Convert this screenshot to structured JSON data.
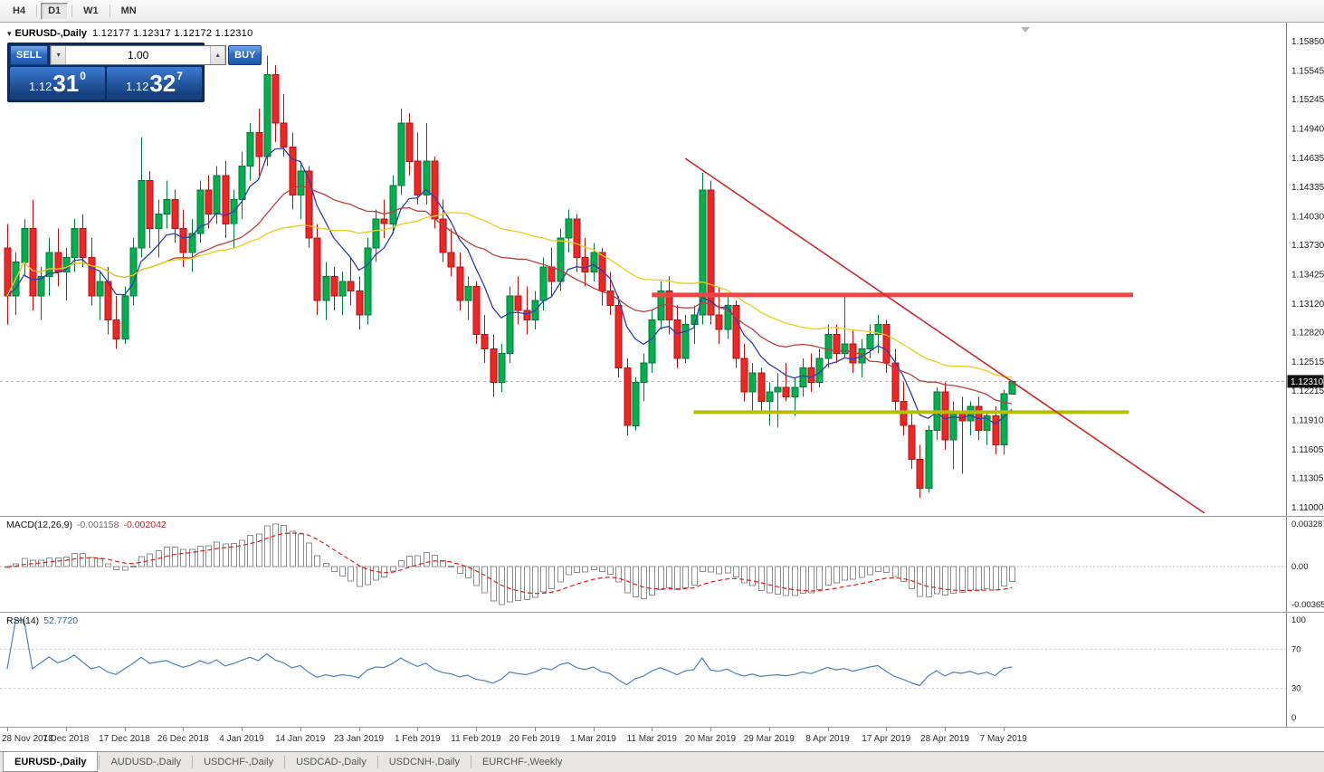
{
  "toolbar": {
    "timeframes": [
      "H4",
      "D1",
      "W1",
      "MN"
    ],
    "active": "D1"
  },
  "chart": {
    "title_symbol": "EURUSD-,Daily",
    "title_ohlc": "1.12177 1.12317 1.12172 1.12310"
  },
  "trade_panel": {
    "sell_label": "SELL",
    "buy_label": "BUY",
    "lot_value": "1.00",
    "sell_price": {
      "prefix": "1.12",
      "big": "31",
      "sup": "0"
    },
    "buy_price": {
      "prefix": "1.12",
      "big": "32",
      "sup": "7"
    }
  },
  "icons": {
    "oct_collapse": "▾",
    "lot_decrease": "▾",
    "lot_increase": "▴"
  },
  "tabs": {
    "items": [
      "EURUSD-,Daily",
      "AUDUSD-,Daily",
      "USDCHF-,Daily",
      "USDCAD-,Daily",
      "USDCNH-,Daily",
      "EURCHF-,Weekly"
    ],
    "active_index": 0
  },
  "chart_data": {
    "type": "candlestick",
    "symbol": "EURUSD",
    "timeframe": "Daily",
    "price_axis_labels": [
      "1.15850",
      "1.15545",
      "1.15245",
      "1.14940",
      "1.14635",
      "1.14335",
      "1.14030",
      "1.13730",
      "1.13425",
      "1.13120",
      "1.12820",
      "1.12515",
      "1.12215",
      "1.11910",
      "1.11605",
      "1.11305",
      "1.11000"
    ],
    "price_axis_top": 1.1585,
    "price_axis_bottom": 1.11,
    "current_price": 1.1231,
    "current_price_label": "1.12310",
    "bull_color": "#00b050",
    "bull_border": "#007a38",
    "bear_color": "#f02525",
    "bear_border": "#b51414",
    "x_labels": [
      {
        "bar": 0,
        "text": "28 Nov 2018"
      },
      {
        "bar": 7,
        "text": "7 Dec 2018"
      },
      {
        "bar": 14,
        "text": "17 Dec 2018"
      },
      {
        "bar": 21,
        "text": "26 Dec 2018"
      },
      {
        "bar": 28,
        "text": "4 Jan 2019"
      },
      {
        "bar": 35,
        "text": "14 Jan 2019"
      },
      {
        "bar": 42,
        "text": "23 Jan 2019"
      },
      {
        "bar": 49,
        "text": "1 Feb 2019"
      },
      {
        "bar": 56,
        "text": "11 Feb 2019"
      },
      {
        "bar": 63,
        "text": "20 Feb 2019"
      },
      {
        "bar": 70,
        "text": "1 Mar 2019"
      },
      {
        "bar": 77,
        "text": "11 Mar 2019"
      },
      {
        "bar": 84,
        "text": "20 Mar 2019"
      },
      {
        "bar": 91,
        "text": "29 Mar 2019"
      },
      {
        "bar": 98,
        "text": "8 Apr 2019"
      },
      {
        "bar": 105,
        "text": "17 Apr 2019"
      },
      {
        "bar": 112,
        "text": "28 Apr 2019"
      },
      {
        "bar": 119,
        "text": "7 May 2019"
      }
    ],
    "candles_ohlc": [
      [
        1.137,
        1.1395,
        1.129,
        1.132
      ],
      [
        1.132,
        1.1365,
        1.13,
        1.1355
      ],
      [
        1.1355,
        1.14,
        1.134,
        1.139
      ],
      [
        1.139,
        1.142,
        1.1305,
        1.132
      ],
      [
        1.132,
        1.135,
        1.1295,
        1.134
      ],
      [
        1.134,
        1.138,
        1.132,
        1.1365
      ],
      [
        1.1365,
        1.139,
        1.133,
        1.1345
      ],
      [
        1.1345,
        1.137,
        1.1315,
        1.136
      ],
      [
        1.136,
        1.14,
        1.1345,
        1.139
      ],
      [
        1.139,
        1.1405,
        1.135,
        1.136
      ],
      [
        1.136,
        1.138,
        1.131,
        1.132
      ],
      [
        1.132,
        1.1345,
        1.1295,
        1.1335
      ],
      [
        1.1335,
        1.135,
        1.128,
        1.1295
      ],
      [
        1.1295,
        1.132,
        1.1265,
        1.1275
      ],
      [
        1.1275,
        1.133,
        1.127,
        1.132
      ],
      [
        1.132,
        1.138,
        1.131,
        1.137
      ],
      [
        1.137,
        1.1485,
        1.136,
        1.144
      ],
      [
        1.144,
        1.145,
        1.137,
        1.139
      ],
      [
        1.139,
        1.142,
        1.136,
        1.1405
      ],
      [
        1.1405,
        1.144,
        1.139,
        1.142
      ],
      [
        1.142,
        1.143,
        1.1375,
        1.139
      ],
      [
        1.139,
        1.141,
        1.135,
        1.1365
      ],
      [
        1.1365,
        1.14,
        1.1345,
        1.1385
      ],
      [
        1.1385,
        1.144,
        1.1375,
        1.143
      ],
      [
        1.143,
        1.1445,
        1.139,
        1.1405
      ],
      [
        1.1405,
        1.1455,
        1.1395,
        1.1445
      ],
      [
        1.1445,
        1.146,
        1.138,
        1.1395
      ],
      [
        1.1395,
        1.143,
        1.137,
        1.142
      ],
      [
        1.142,
        1.147,
        1.14,
        1.1455
      ],
      [
        1.1455,
        1.15,
        1.144,
        1.149
      ],
      [
        1.149,
        1.1515,
        1.1445,
        1.1465
      ],
      [
        1.1465,
        1.157,
        1.1455,
        1.155
      ],
      [
        1.155,
        1.156,
        1.148,
        1.15
      ],
      [
        1.15,
        1.153,
        1.1465,
        1.1475
      ],
      [
        1.1475,
        1.149,
        1.141,
        1.1425
      ],
      [
        1.1425,
        1.146,
        1.14,
        1.145
      ],
      [
        1.145,
        1.1455,
        1.137,
        1.138
      ],
      [
        1.138,
        1.1395,
        1.13,
        1.1315
      ],
      [
        1.1315,
        1.1355,
        1.1295,
        1.134
      ],
      [
        1.134,
        1.135,
        1.1305,
        1.132
      ],
      [
        1.132,
        1.1345,
        1.13,
        1.1335
      ],
      [
        1.1335,
        1.136,
        1.131,
        1.1325
      ],
      [
        1.1325,
        1.134,
        1.1285,
        1.13
      ],
      [
        1.13,
        1.138,
        1.129,
        1.137
      ],
      [
        1.137,
        1.141,
        1.1355,
        1.14
      ],
      [
        1.14,
        1.142,
        1.138,
        1.1395
      ],
      [
        1.1395,
        1.1445,
        1.1385,
        1.1435
      ],
      [
        1.1435,
        1.1515,
        1.1425,
        1.15
      ],
      [
        1.15,
        1.151,
        1.1445,
        1.146
      ],
      [
        1.146,
        1.149,
        1.1415,
        1.1425
      ],
      [
        1.1425,
        1.15,
        1.1415,
        1.146
      ],
      [
        1.146,
        1.1465,
        1.139,
        1.14
      ],
      [
        1.14,
        1.142,
        1.1355,
        1.1365
      ],
      [
        1.1365,
        1.139,
        1.134,
        1.135
      ],
      [
        1.135,
        1.1365,
        1.1305,
        1.1315
      ],
      [
        1.1315,
        1.134,
        1.1295,
        1.133
      ],
      [
        1.133,
        1.1335,
        1.127,
        1.128
      ],
      [
        1.128,
        1.13,
        1.125,
        1.1265
      ],
      [
        1.1265,
        1.128,
        1.1215,
        1.123
      ],
      [
        1.123,
        1.127,
        1.122,
        1.126
      ],
      [
        1.126,
        1.133,
        1.125,
        1.132
      ],
      [
        1.132,
        1.134,
        1.129,
        1.1305
      ],
      [
        1.1305,
        1.133,
        1.128,
        1.1295
      ],
      [
        1.1295,
        1.1325,
        1.1285,
        1.1315
      ],
      [
        1.1315,
        1.136,
        1.1305,
        1.135
      ],
      [
        1.135,
        1.137,
        1.132,
        1.1335
      ],
      [
        1.1335,
        1.139,
        1.1325,
        1.138
      ],
      [
        1.138,
        1.141,
        1.1365,
        1.14
      ],
      [
        1.14,
        1.1405,
        1.1345,
        1.136
      ],
      [
        1.136,
        1.138,
        1.133,
        1.1345
      ],
      [
        1.1345,
        1.1375,
        1.1335,
        1.1365
      ],
      [
        1.1365,
        1.137,
        1.131,
        1.1325
      ],
      [
        1.1325,
        1.1345,
        1.13,
        1.131
      ],
      [
        1.131,
        1.132,
        1.1235,
        1.1245
      ],
      [
        1.1245,
        1.1255,
        1.1175,
        1.1185
      ],
      [
        1.1185,
        1.1235,
        1.118,
        1.123
      ],
      [
        1.123,
        1.126,
        1.121,
        1.125
      ],
      [
        1.125,
        1.1305,
        1.124,
        1.1295
      ],
      [
        1.1295,
        1.1335,
        1.1285,
        1.1325
      ],
      [
        1.1325,
        1.134,
        1.128,
        1.1295
      ],
      [
        1.1295,
        1.131,
        1.1245,
        1.1255
      ],
      [
        1.1255,
        1.13,
        1.125,
        1.129
      ],
      [
        1.129,
        1.131,
        1.127,
        1.13
      ],
      [
        1.13,
        1.1448,
        1.129,
        1.143
      ],
      [
        1.143,
        1.144,
        1.129,
        1.13
      ],
      [
        1.13,
        1.133,
        1.127,
        1.1285
      ],
      [
        1.1285,
        1.132,
        1.1275,
        1.131
      ],
      [
        1.131,
        1.1315,
        1.1245,
        1.1255
      ],
      [
        1.1255,
        1.127,
        1.121,
        1.122
      ],
      [
        1.122,
        1.125,
        1.12,
        1.124
      ],
      [
        1.124,
        1.1245,
        1.12,
        1.121
      ],
      [
        1.121,
        1.123,
        1.1185,
        1.122
      ],
      [
        1.122,
        1.124,
        1.1183,
        1.1225
      ],
      [
        1.1225,
        1.125,
        1.121,
        1.1215
      ],
      [
        1.1215,
        1.1235,
        1.1195,
        1.1225
      ],
      [
        1.1225,
        1.1255,
        1.1215,
        1.1245
      ],
      [
        1.1245,
        1.126,
        1.122,
        1.123
      ],
      [
        1.123,
        1.1265,
        1.1225,
        1.1255
      ],
      [
        1.1255,
        1.129,
        1.1245,
        1.128
      ],
      [
        1.128,
        1.129,
        1.125,
        1.126
      ],
      [
        1.126,
        1.132,
        1.1255,
        1.127
      ],
      [
        1.127,
        1.1285,
        1.124,
        1.125
      ],
      [
        1.125,
        1.1275,
        1.1235,
        1.1265
      ],
      [
        1.1265,
        1.129,
        1.1255,
        1.128
      ],
      [
        1.128,
        1.13,
        1.126,
        1.129
      ],
      [
        1.129,
        1.1295,
        1.124,
        1.125
      ],
      [
        1.125,
        1.1265,
        1.12,
        1.121
      ],
      [
        1.121,
        1.123,
        1.1175,
        1.1185
      ],
      [
        1.1185,
        1.12,
        1.114,
        1.115
      ],
      [
        1.115,
        1.1165,
        1.111,
        1.112
      ],
      [
        1.112,
        1.1185,
        1.1115,
        1.118
      ],
      [
        1.118,
        1.1225,
        1.117,
        1.122
      ],
      [
        1.122,
        1.123,
        1.116,
        1.117
      ],
      [
        1.117,
        1.121,
        1.114,
        1.12
      ],
      [
        1.12,
        1.1215,
        1.1135,
        1.119
      ],
      [
        1.119,
        1.121,
        1.1175,
        1.1205
      ],
      [
        1.1205,
        1.1215,
        1.117,
        1.118
      ],
      [
        1.118,
        1.12,
        1.1165,
        1.1195
      ],
      [
        1.1195,
        1.1205,
        1.1155,
        1.1165
      ],
      [
        1.1165,
        1.1222,
        1.1155,
        1.1218
      ],
      [
        1.12177,
        1.12317,
        1.12172,
        1.1231
      ]
    ],
    "moving_averages": [
      {
        "period": 8,
        "method": "ema",
        "color": "#2e3cb0"
      },
      {
        "period": 20,
        "method": "sma",
        "color": "#b94040"
      },
      {
        "period": 40,
        "method": "sma",
        "color": "#e8cf1a"
      }
    ],
    "objects": {
      "trendline": {
        "color": "#cc2a2a",
        "width": 1.6,
        "x1_bar": 81,
        "price1": 1.1463,
        "x2_bar": 143,
        "price2": 1.1094
      },
      "resistance_line": {
        "color": "#f04343",
        "width": 5,
        "price": 1.1321,
        "x1_bar": 77,
        "x2_bar": 134.5
      },
      "support_line": {
        "color": "#b4bd00",
        "width": 4,
        "price": 1.1199,
        "x1_bar": 82,
        "x2_bar": 134
      }
    },
    "macd": {
      "label": "MACD(12,26,9)",
      "value_main": "-0.001158",
      "value_signal": "-0.002042",
      "fast": 12,
      "slow": 26,
      "signal": 9,
      "axis_labels": [
        "0.003287",
        "0.00",
        "-0.003659"
      ],
      "histogram_color": "#8f8f8f",
      "signal_color": "#e02020"
    },
    "rsi": {
      "label": "RSI(14)",
      "value": "52.7720",
      "period": 14,
      "axis_labels": [
        "100",
        "70",
        "30",
        "0"
      ],
      "levels": [
        70,
        30
      ],
      "line_color": "#4f81bd"
    }
  }
}
